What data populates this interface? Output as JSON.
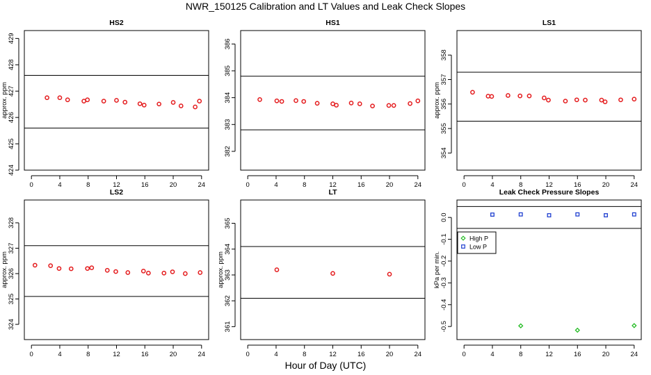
{
  "title": "NWR_150125  Calibration and LT Values and Leak Check Slopes",
  "x_axis_title": "Hour of Day (UTC)",
  "colors": {
    "points": "#e41a1c",
    "high_p": "#22bb22",
    "low_p": "#1f3fd0",
    "axis": "#000000"
  },
  "chart_data": [
    {
      "type": "scatter",
      "title": "HS2",
      "ylabel": "approx. ppm",
      "xlim": [
        -1,
        25
      ],
      "ylim": [
        424,
        429.3
      ],
      "xticks": [
        0,
        4,
        8,
        12,
        16,
        20,
        24
      ],
      "xtick_labels": [
        "0",
        "4",
        "8",
        "12",
        "16",
        "20",
        "24"
      ],
      "yticks": [
        424,
        425,
        426,
        427,
        428,
        429
      ],
      "ytick_labels": [
        "424",
        "425",
        "426",
        "427",
        "428",
        "429"
      ],
      "hlines": [
        427.6,
        425.6
      ],
      "grid": false,
      "series": [
        {
          "marker": "circle",
          "x": [
            2.2,
            4.0,
            5.1,
            7.4,
            7.9,
            10.2,
            12.0,
            13.2,
            15.3,
            15.9,
            18.0,
            20.0,
            21.1,
            23.1,
            23.7
          ],
          "y": [
            426.75,
            426.75,
            426.67,
            426.62,
            426.67,
            426.62,
            426.65,
            426.58,
            426.52,
            426.47,
            426.51,
            426.57,
            426.44,
            426.4,
            426.62
          ]
        }
      ]
    },
    {
      "type": "scatter",
      "title": "HS1",
      "ylabel": "",
      "xlim": [
        -1,
        25
      ],
      "ylim": [
        381.3,
        386.5
      ],
      "xticks": [
        0,
        4,
        8,
        12,
        16,
        20,
        24
      ],
      "xtick_labels": [
        "0",
        "4",
        "8",
        "12",
        "16",
        "20",
        "24"
      ],
      "yticks": [
        382,
        383,
        384,
        385,
        386
      ],
      "ytick_labels": [
        "382",
        "383",
        "384",
        "385",
        "386"
      ],
      "hlines": [
        384.8,
        382.8
      ],
      "grid": false,
      "series": [
        {
          "marker": "circle",
          "x": [
            1.7,
            4.1,
            4.8,
            6.8,
            7.9,
            9.8,
            12.0,
            12.5,
            14.6,
            15.8,
            17.6,
            19.9,
            20.6,
            22.9,
            24.0
          ],
          "y": [
            383.93,
            383.88,
            383.86,
            383.89,
            383.86,
            383.79,
            383.77,
            383.72,
            383.8,
            383.77,
            383.69,
            383.71,
            383.71,
            383.78,
            383.88
          ]
        }
      ]
    },
    {
      "type": "scatter",
      "title": "LS1",
      "ylabel": "approx. ppm",
      "xlim": [
        -1,
        25
      ],
      "ylim": [
        353.3,
        359.0
      ],
      "xticks": [
        0,
        4,
        8,
        12,
        16,
        20,
        24
      ],
      "xtick_labels": [
        "0",
        "4",
        "8",
        "12",
        "16",
        "20",
        "24"
      ],
      "yticks": [
        354,
        355,
        356,
        357,
        358
      ],
      "ytick_labels": [
        "354",
        "355",
        "356",
        "357",
        "358"
      ],
      "hlines": [
        357.3,
        355.3
      ],
      "grid": false,
      "series": [
        {
          "marker": "circle",
          "x": [
            1.2,
            3.4,
            3.9,
            6.2,
            7.9,
            9.2,
            11.3,
            11.9,
            14.3,
            15.9,
            17.1,
            19.4,
            19.9,
            22.1,
            24.0
          ],
          "y": [
            356.48,
            356.32,
            356.31,
            356.35,
            356.33,
            356.33,
            356.25,
            356.16,
            356.12,
            356.17,
            356.16,
            356.16,
            356.09,
            356.17,
            356.2
          ]
        }
      ]
    },
    {
      "type": "scatter",
      "title": "LS2",
      "ylabel": "approx. ppm",
      "xlim": [
        -1,
        25
      ],
      "ylim": [
        323.4,
        328.9
      ],
      "xticks": [
        0,
        4,
        8,
        12,
        16,
        20,
        24
      ],
      "xtick_labels": [
        "0",
        "4",
        "8",
        "12",
        "16",
        "20",
        "24"
      ],
      "yticks": [
        324,
        325,
        326,
        327,
        328
      ],
      "ytick_labels": [
        "324",
        "325",
        "326",
        "327",
        "328"
      ],
      "hlines": [
        327.1,
        325.1
      ],
      "grid": false,
      "series": [
        {
          "marker": "circle",
          "x": [
            0.5,
            2.7,
            3.9,
            5.6,
            7.9,
            8.5,
            10.7,
            11.9,
            13.6,
            15.8,
            16.5,
            18.7,
            19.9,
            21.7,
            23.8
          ],
          "y": [
            326.33,
            326.31,
            326.2,
            326.19,
            326.2,
            326.23,
            326.13,
            326.08,
            326.04,
            326.1,
            326.02,
            326.02,
            326.07,
            326.0,
            326.04
          ]
        }
      ]
    },
    {
      "type": "scatter",
      "title": "LT",
      "ylabel": "approx. ppm",
      "xlim": [
        -1,
        25
      ],
      "ylim": [
        360.5,
        365.9
      ],
      "xticks": [
        0,
        4,
        8,
        12,
        16,
        20,
        24
      ],
      "xtick_labels": [
        "0",
        "4",
        "8",
        "12",
        "16",
        "20",
        "24"
      ],
      "yticks": [
        361,
        362,
        363,
        364,
        365
      ],
      "ytick_labels": [
        "361",
        "362",
        "363",
        "364",
        "365"
      ],
      "hlines": [
        364.1,
        362.1
      ],
      "grid": false,
      "series": [
        {
          "marker": "circle",
          "x": [
            4.1,
            12.0,
            20.0
          ],
          "y": [
            363.2,
            363.06,
            363.03
          ]
        }
      ]
    },
    {
      "type": "scatter",
      "title": "Leak Check Pressure Slopes",
      "ylabel": "kPa per min.",
      "xlim": [
        -1,
        25
      ],
      "ylim": [
        -0.56,
        0.08
      ],
      "xticks": [
        0,
        4,
        8,
        12,
        16,
        20,
        24
      ],
      "xtick_labels": [
        "0",
        "4",
        "8",
        "12",
        "16",
        "20",
        "24"
      ],
      "yticks": [
        0.0,
        -0.1,
        -0.2,
        -0.3,
        -0.4,
        -0.5
      ],
      "ytick_labels": [
        "0.0",
        "-0.1",
        "-0.2",
        "-0.3",
        "-0.4",
        "-0.5"
      ],
      "hlines": [
        0.05,
        -0.05
      ],
      "grid": false,
      "legend_position": "top-left",
      "series": [
        {
          "name": "High P",
          "marker": "diamond",
          "color": "#22bb22",
          "x": [
            8,
            16,
            24
          ],
          "y": [
            -0.497,
            -0.517,
            -0.496
          ]
        },
        {
          "name": "Low P",
          "marker": "square",
          "color": "#1f3fd0",
          "x": [
            4,
            8,
            12,
            16,
            20,
            24
          ],
          "y": [
            0.013,
            0.014,
            0.01,
            0.014,
            0.01,
            0.014
          ]
        }
      ]
    }
  ]
}
